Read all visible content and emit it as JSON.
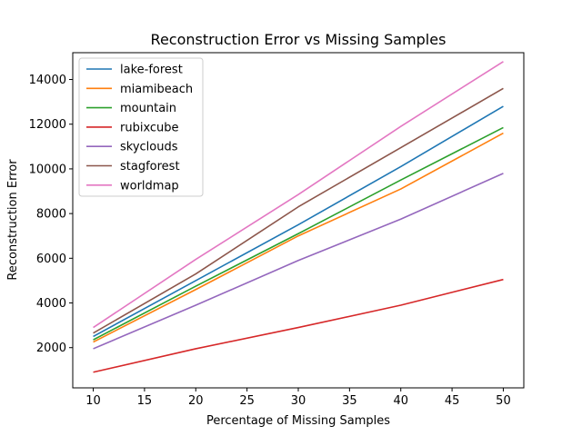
{
  "chart_data": {
    "type": "line",
    "title": "Reconstruction Error vs Missing Samples",
    "xlabel": "Percentage of Missing Samples",
    "ylabel": "Reconstruction Error",
    "x": [
      10,
      20,
      30,
      40,
      50
    ],
    "xlim": [
      8,
      52
    ],
    "ylim": [
      200,
      15200
    ],
    "xticks": [
      10,
      15,
      20,
      25,
      30,
      35,
      40,
      45,
      50
    ],
    "yticks": [
      2000,
      4000,
      6000,
      8000,
      10000,
      12000,
      14000
    ],
    "grid": false,
    "legend_position": "top-left",
    "series": [
      {
        "name": "lake-forest",
        "color": "#1f77b4",
        "values": [
          2500,
          5000,
          7500,
          10100,
          12800
        ]
      },
      {
        "name": "miamibeach",
        "color": "#ff7f0e",
        "values": [
          2250,
          4600,
          7000,
          9100,
          11600
        ]
      },
      {
        "name": "mountain",
        "color": "#2ca02c",
        "values": [
          2350,
          4750,
          7100,
          9500,
          11850
        ]
      },
      {
        "name": "rubixcube",
        "color": "#d62728",
        "values": [
          900,
          1950,
          2900,
          3900,
          5050
        ]
      },
      {
        "name": "skyclouds",
        "color": "#9467bd",
        "values": [
          1950,
          3900,
          5900,
          7750,
          9800
        ]
      },
      {
        "name": "stagforest",
        "color": "#8c564b",
        "values": [
          2650,
          5300,
          8300,
          10950,
          13600
        ]
      },
      {
        "name": "worldmap",
        "color": "#e377c2",
        "values": [
          2900,
          5950,
          8850,
          11900,
          14800
        ]
      }
    ]
  }
}
